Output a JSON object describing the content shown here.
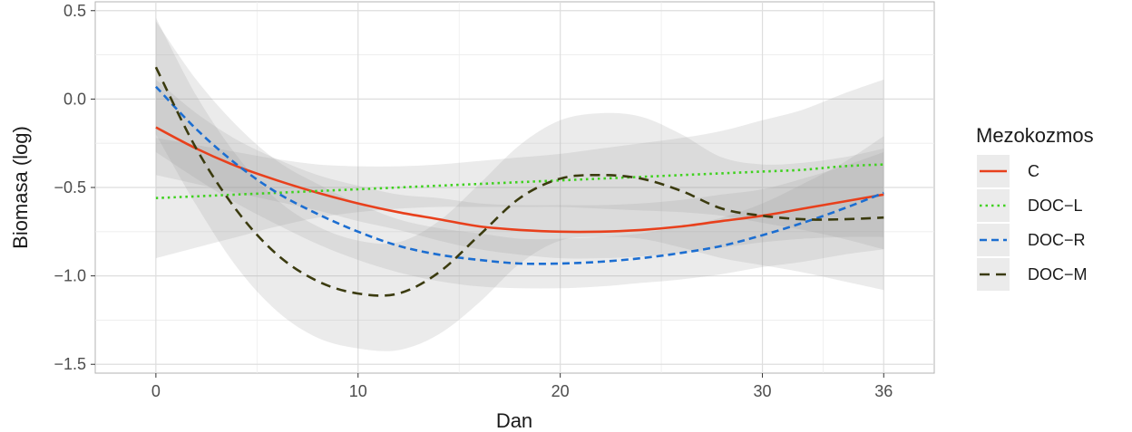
{
  "chart_data": {
    "type": "line",
    "xlabel": "Dan",
    "ylabel": "Biomasa (log)",
    "xlim": [
      -3,
      38.5
    ],
    "ylim": [
      -1.55,
      0.55
    ],
    "x_ticks": [
      0,
      10,
      20,
      30,
      36
    ],
    "x_tick_labels": [
      "0",
      "10",
      "20",
      "30",
      "36"
    ],
    "x_minor_grid": [
      5,
      15,
      25,
      33
    ],
    "y_ticks": [
      -1.5,
      -1.0,
      -0.5,
      0.0,
      0.5
    ],
    "y_tick_labels": [
      "−1.5",
      "−1.0",
      "−0.5",
      "0.0",
      "0.5"
    ],
    "y_minor_grid": [
      -1.25,
      -0.75,
      -0.25,
      0.25
    ],
    "grid": true,
    "legend": {
      "title": "Mezokozmos",
      "position": "right"
    },
    "x": [
      0,
      2,
      4,
      6,
      8,
      10,
      12,
      14,
      16,
      18,
      20,
      22,
      24,
      26,
      28,
      30,
      32,
      34,
      36
    ],
    "series": [
      {
        "name": "C",
        "color": "#e8401c",
        "dash": "solid",
        "values": [
          -0.16,
          -0.28,
          -0.38,
          -0.46,
          -0.53,
          -0.59,
          -0.64,
          -0.68,
          -0.72,
          -0.74,
          -0.75,
          -0.75,
          -0.74,
          -0.72,
          -0.69,
          -0.66,
          -0.62,
          -0.58,
          -0.54
        ],
        "band_lower": [
          -0.43,
          -0.48,
          -0.53,
          -0.58,
          -0.63,
          -0.69,
          -0.74,
          -0.8,
          -0.85,
          -0.88,
          -0.9,
          -0.9,
          -0.89,
          -0.87,
          -0.84,
          -0.81,
          -0.79,
          -0.78,
          -0.78
        ],
        "band_upper": [
          0.11,
          -0.08,
          -0.23,
          -0.34,
          -0.43,
          -0.49,
          -0.54,
          -0.56,
          -0.59,
          -0.6,
          -0.6,
          -0.6,
          -0.59,
          -0.57,
          -0.54,
          -0.51,
          -0.45,
          -0.38,
          -0.3
        ]
      },
      {
        "name": "DOC−L",
        "color": "#3fd11f",
        "dash": "dotted",
        "values": [
          -0.56,
          -0.55,
          -0.54,
          -0.53,
          -0.52,
          -0.51,
          -0.5,
          -0.49,
          -0.48,
          -0.47,
          -0.46,
          -0.45,
          -0.44,
          -0.43,
          -0.42,
          -0.41,
          -0.4,
          -0.38,
          -0.37
        ],
        "band_lower": [
          -0.9,
          -0.84,
          -0.78,
          -0.72,
          -0.67,
          -0.64,
          -0.62,
          -0.61,
          -0.61,
          -0.61,
          -0.61,
          -0.62,
          -0.63,
          -0.64,
          -0.66,
          -0.7,
          -0.74,
          -0.79,
          -0.85
        ],
        "band_upper": [
          -0.22,
          -0.26,
          -0.3,
          -0.34,
          -0.37,
          -0.38,
          -0.38,
          -0.37,
          -0.35,
          -0.33,
          -0.31,
          -0.28,
          -0.25,
          -0.22,
          -0.18,
          -0.12,
          -0.06,
          0.03,
          0.11
        ]
      },
      {
        "name": "DOC−R",
        "color": "#1c6ed1",
        "dash": "dashed",
        "values": [
          0.07,
          -0.17,
          -0.37,
          -0.53,
          -0.65,
          -0.75,
          -0.83,
          -0.88,
          -0.91,
          -0.93,
          -0.93,
          -0.92,
          -0.9,
          -0.87,
          -0.83,
          -0.77,
          -0.7,
          -0.62,
          -0.53
        ],
        "band_lower": [
          -0.3,
          -0.45,
          -0.59,
          -0.71,
          -0.82,
          -0.91,
          -0.98,
          -1.03,
          -1.06,
          -1.07,
          -1.07,
          -1.06,
          -1.04,
          -1.02,
          -0.99,
          -0.95,
          -0.92,
          -0.88,
          -0.85
        ],
        "band_upper": [
          0.44,
          0.11,
          -0.15,
          -0.35,
          -0.48,
          -0.59,
          -0.68,
          -0.73,
          -0.76,
          -0.79,
          -0.79,
          -0.78,
          -0.76,
          -0.72,
          -0.67,
          -0.59,
          -0.48,
          -0.36,
          -0.21
        ]
      },
      {
        "name": "DOC−M",
        "color": "#3b3b0f",
        "dash": "longdash",
        "values": [
          0.18,
          -0.28,
          -0.63,
          -0.88,
          -1.03,
          -1.1,
          -1.1,
          -0.98,
          -0.77,
          -0.56,
          -0.45,
          -0.43,
          -0.45,
          -0.52,
          -0.62,
          -0.66,
          -0.68,
          -0.68,
          -0.67
        ],
        "band_lower": [
          -0.2,
          -0.6,
          -0.95,
          -1.2,
          -1.35,
          -1.41,
          -1.42,
          -1.33,
          -1.15,
          -0.93,
          -0.8,
          -0.78,
          -0.79,
          -0.84,
          -0.9,
          -0.94,
          -0.98,
          -1.03,
          -1.08
        ],
        "band_upper": [
          0.46,
          0.02,
          -0.32,
          -0.57,
          -0.72,
          -0.8,
          -0.81,
          -0.69,
          -0.48,
          -0.26,
          -0.12,
          -0.08,
          -0.1,
          -0.2,
          -0.33,
          -0.37,
          -0.36,
          -0.33,
          -0.28
        ]
      }
    ]
  }
}
